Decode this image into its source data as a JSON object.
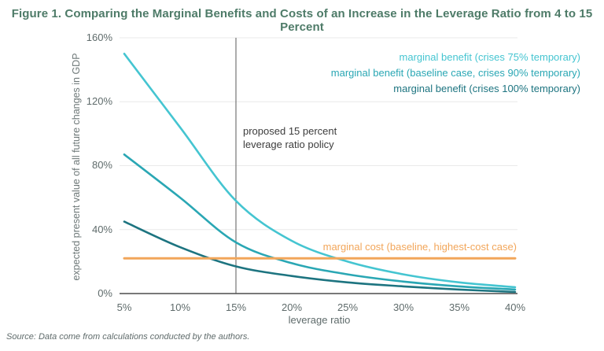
{
  "figure": {
    "title": "Figure 1. Comparing the Marginal Benefits and Costs of an Increase in the Leverage Ratio from 4 to 15 Percent",
    "title_color": "#4e7b68",
    "source": "Source: Data come from calculations conducted by the authors."
  },
  "chart_data": {
    "type": "line",
    "x": [
      5,
      10,
      15,
      20,
      25,
      30,
      35,
      40
    ],
    "x_tick_labels": [
      "5%",
      "10%",
      "15%",
      "20%",
      "25%",
      "30%",
      "35%",
      "40%"
    ],
    "y_ticks": [
      0,
      40,
      80,
      120,
      160
    ],
    "y_tick_labels": [
      "0%",
      "40%",
      "80%",
      "120%",
      "160%"
    ],
    "xlabel": "leverage ratio",
    "ylabel": "expected present value of all future changes in GDP",
    "xlim": [
      5,
      40
    ],
    "ylim": [
      0,
      160
    ],
    "grid": "horizontal-light",
    "legend_position": "top-right",
    "series": [
      {
        "name": "marginal benefit (crises 75% temporary)",
        "color": "#45c5d1",
        "values": [
          150,
          104,
          58,
          33,
          20,
          12,
          7,
          4
        ]
      },
      {
        "name": "marginal benefit (baseline case, crises 90% temporary)",
        "color": "#2aa7b4",
        "values": [
          87,
          60,
          32,
          19,
          12,
          7.5,
          4.5,
          2.5
        ]
      },
      {
        "name": "marginal benefit (crises 100% temporary)",
        "color": "#1d7480",
        "values": [
          45,
          29,
          17,
          11,
          7,
          4.5,
          2.5,
          1
        ]
      },
      {
        "name": "marginal cost (baseline, highest-cost case)",
        "color": "#f2a65a",
        "values": [
          22,
          22,
          22,
          22,
          22,
          22,
          22,
          22
        ]
      }
    ],
    "annotation": {
      "line1": "proposed 15 percent",
      "line2": "leverage ratio policy",
      "x_value": 15
    }
  }
}
